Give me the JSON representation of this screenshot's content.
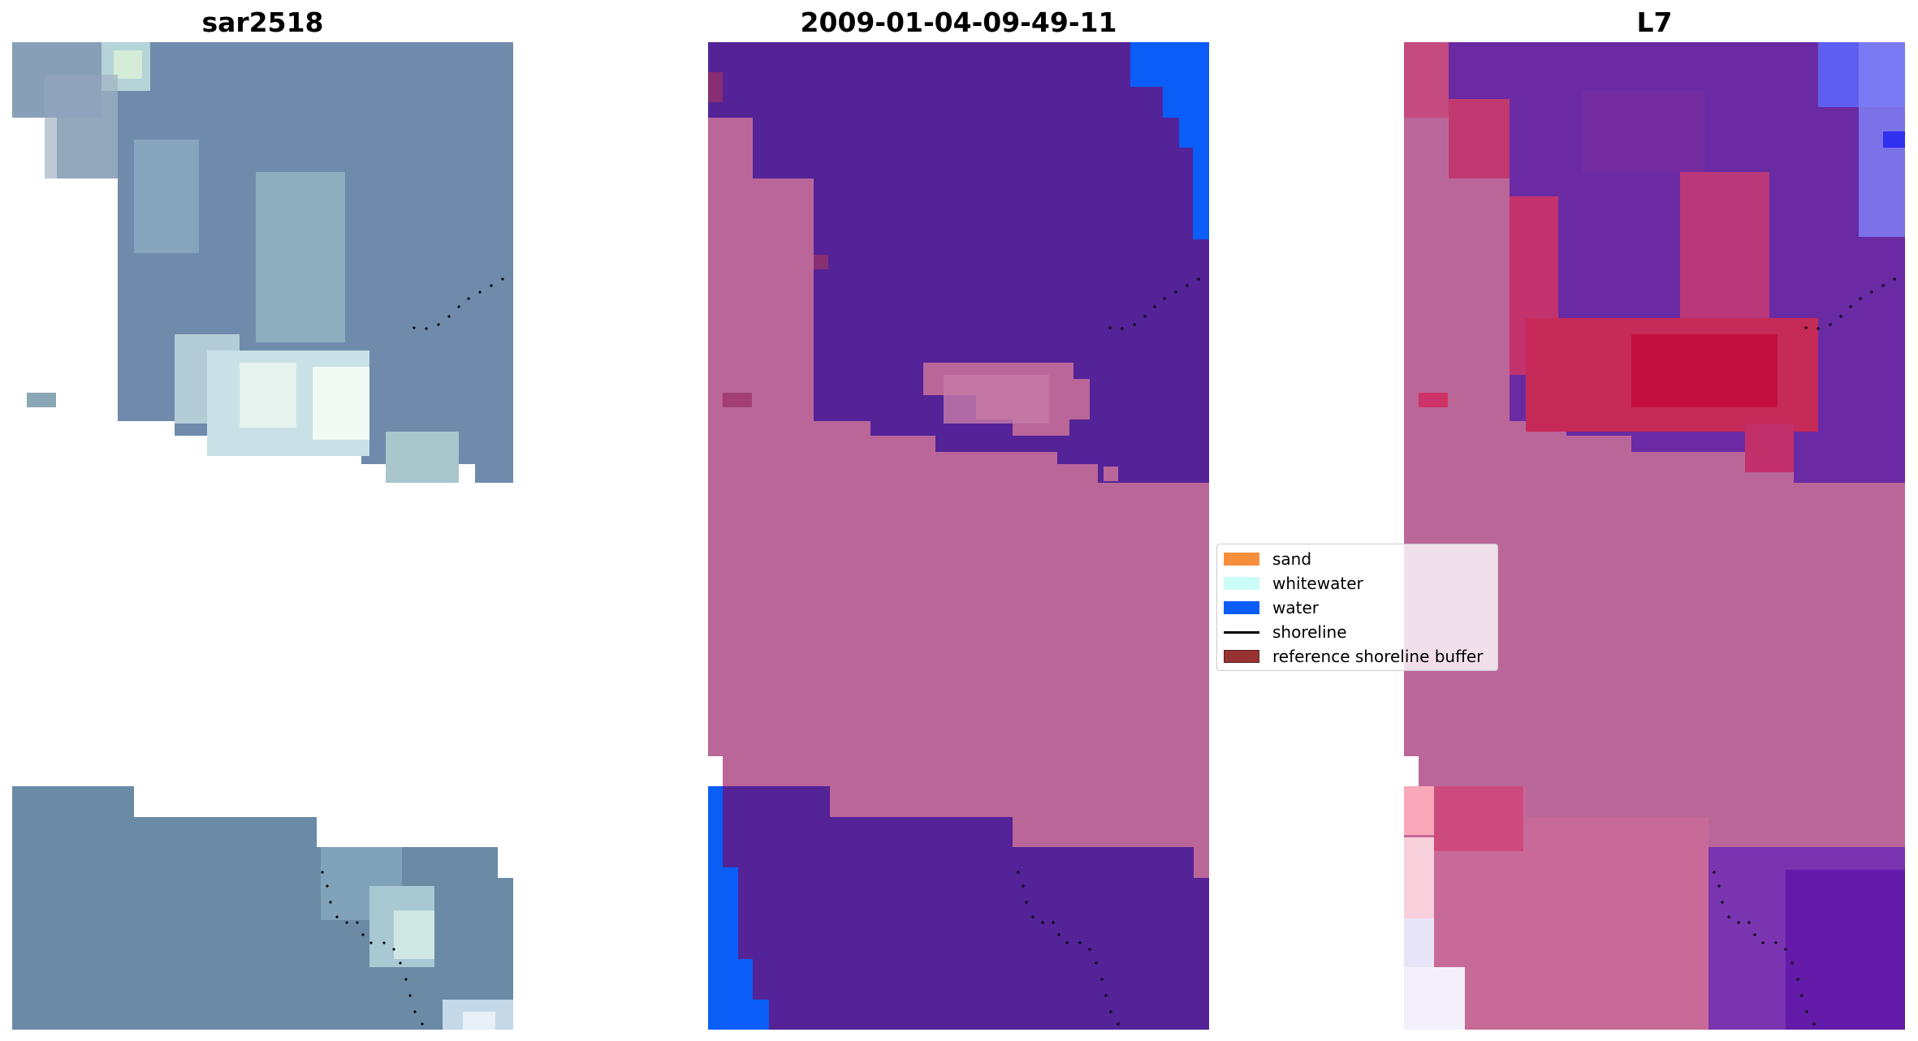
{
  "panels": {
    "rgb_title": "sar2518",
    "classification_title": "2009-01-04-09-49-11",
    "index_title": "L7"
  },
  "legend": {
    "items": [
      {
        "label": "sand",
        "color": "#f68e3c",
        "kind": "patch"
      },
      {
        "label": "whitewater",
        "color": "#ccfcf8",
        "kind": "patch"
      },
      {
        "label": "water",
        "color": "#0a5df7",
        "kind": "patch"
      },
      {
        "label": "shoreline",
        "color": "#000000",
        "kind": "line"
      },
      {
        "label": "reference shoreline buffer",
        "color": "#993333",
        "kind": "patch"
      }
    ]
  },
  "colors": {
    "masked_overlay": "#bb6699",
    "land_purple": "#532397",
    "water_blue": "#0a5df7",
    "rgb_water": "#6786a8",
    "rgb_surf": "#dceef0",
    "index_red": "#c82850",
    "index_purple": "#6a2aa4"
  }
}
